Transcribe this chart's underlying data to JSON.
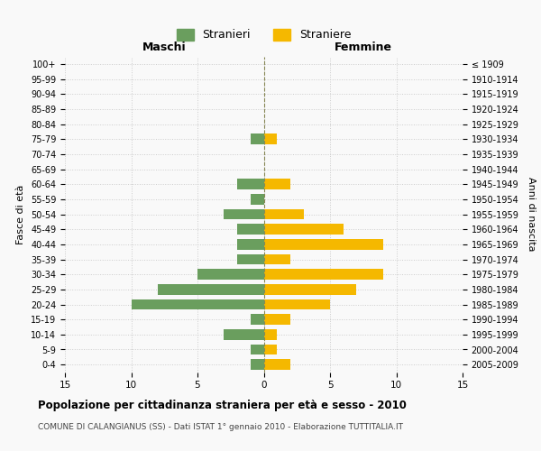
{
  "age_groups": [
    "100+",
    "95-99",
    "90-94",
    "85-89",
    "80-84",
    "75-79",
    "70-74",
    "65-69",
    "60-64",
    "55-59",
    "50-54",
    "45-49",
    "40-44",
    "35-39",
    "30-34",
    "25-29",
    "20-24",
    "15-19",
    "10-14",
    "5-9",
    "0-4"
  ],
  "birth_years": [
    "≤ 1909",
    "1910-1914",
    "1915-1919",
    "1920-1924",
    "1925-1929",
    "1930-1934",
    "1935-1939",
    "1940-1944",
    "1945-1949",
    "1950-1954",
    "1955-1959",
    "1960-1964",
    "1965-1969",
    "1970-1974",
    "1975-1979",
    "1980-1984",
    "1985-1989",
    "1990-1994",
    "1995-1999",
    "2000-2004",
    "2005-2009"
  ],
  "maschi": [
    0,
    0,
    0,
    0,
    0,
    1,
    0,
    0,
    2,
    1,
    3,
    2,
    2,
    2,
    5,
    8,
    10,
    1,
    3,
    1,
    1
  ],
  "femmine": [
    0,
    0,
    0,
    0,
    0,
    1,
    0,
    0,
    2,
    0,
    3,
    6,
    9,
    2,
    9,
    7,
    5,
    2,
    1,
    1,
    2
  ],
  "maschi_color": "#6a9e5e",
  "femmine_color": "#f5b800",
  "background_color": "#f9f9f9",
  "grid_color": "#cccccc",
  "center_line_color": "#888855",
  "title": "Popolazione per cittadinanza straniera per età e sesso - 2010",
  "subtitle": "COMUNE DI CALANGIANUS (SS) - Dati ISTAT 1° gennaio 2010 - Elaborazione TUTTITALIA.IT",
  "xlabel_left": "Maschi",
  "xlabel_right": "Femmine",
  "ylabel_left": "Fasce di età",
  "ylabel_right": "Anni di nascita",
  "legend_maschi": "Stranieri",
  "legend_femmine": "Straniere",
  "xlim": 15,
  "bar_height": 0.7
}
